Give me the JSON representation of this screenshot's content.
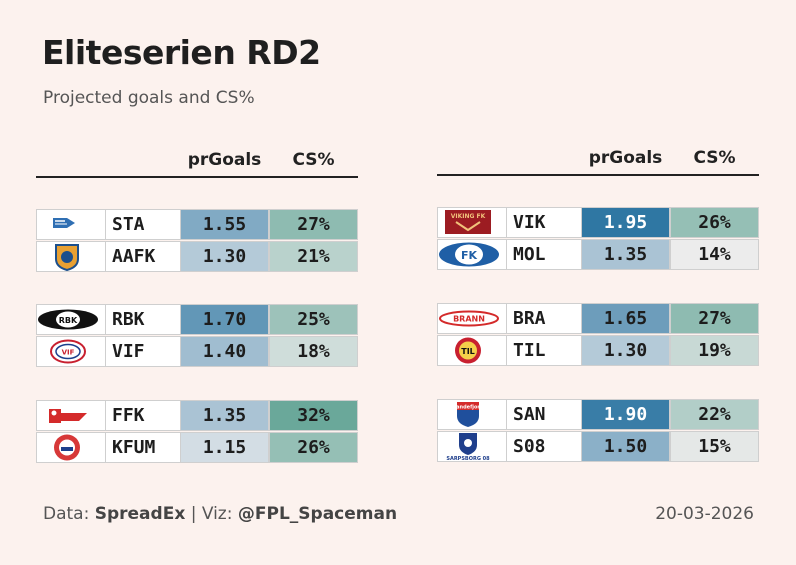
{
  "title": "Eliteserien RD2",
  "subtitle": "Projected goals and CS%",
  "headers": {
    "goals": "prGoals",
    "cs": "CS%"
  },
  "footer": {
    "data_label": "Data:",
    "data_source": "SpreadEx",
    "separator": "|",
    "viz_label": "Viz:",
    "viz_author": "@FPL_Spaceman",
    "date": "20-03-2026"
  },
  "colors": {
    "background": "#fcf2ee",
    "goals_low": "#d3dde4",
    "goals_high": "#2f77a3",
    "cs_low": "#ececec",
    "cs_high": "#6aa89a"
  },
  "chart_data": {
    "type": "table",
    "title": "Eliteserien RD2",
    "subtitle": "Projected goals and CS%",
    "columns": [
      "team",
      "prGoals",
      "CS%"
    ],
    "matches": [
      {
        "home": {
          "team": "STA",
          "logo": "stabaek-logo",
          "goals": "1.55",
          "cs": "27%"
        },
        "away": {
          "team": "AAFK",
          "logo": "aalesund-logo",
          "goals": "1.30",
          "cs": "21%"
        }
      },
      {
        "home": {
          "team": "RBK",
          "logo": "rosenborg-logo",
          "goals": "1.70",
          "cs": "25%"
        },
        "away": {
          "team": "VIF",
          "logo": "valerenga-logo",
          "goals": "1.40",
          "cs": "18%"
        }
      },
      {
        "home": {
          "team": "FFK",
          "logo": "fredrikstad-logo",
          "goals": "1.35",
          "cs": "32%"
        },
        "away": {
          "team": "KFUM",
          "logo": "kfum-logo",
          "goals": "1.15",
          "cs": "26%"
        }
      },
      {
        "home": {
          "team": "VIK",
          "logo": "viking-logo",
          "goals": "1.95",
          "cs": "26%"
        },
        "away": {
          "team": "MOL",
          "logo": "molde-logo",
          "goals": "1.35",
          "cs": "14%"
        }
      },
      {
        "home": {
          "team": "BRA",
          "logo": "brann-logo",
          "goals": "1.65",
          "cs": "27%"
        },
        "away": {
          "team": "TIL",
          "logo": "tromso-logo",
          "goals": "1.30",
          "cs": "19%"
        }
      },
      {
        "home": {
          "team": "SAN",
          "logo": "sandefjord-logo",
          "goals": "1.90",
          "cs": "22%"
        },
        "away": {
          "team": "S08",
          "logo": "sarpsborg-logo",
          "goals": "1.50",
          "cs": "15%"
        }
      }
    ],
    "logo_text": {
      "viking": "VIKING FK",
      "molde": "FK",
      "brann": "BRANN",
      "tromso": "TIL",
      "sandefjord": "Sandefjord",
      "sarpsborg": "SARPSBORG 08",
      "valerenga": "VIF",
      "rosenborg": "RBK"
    }
  }
}
